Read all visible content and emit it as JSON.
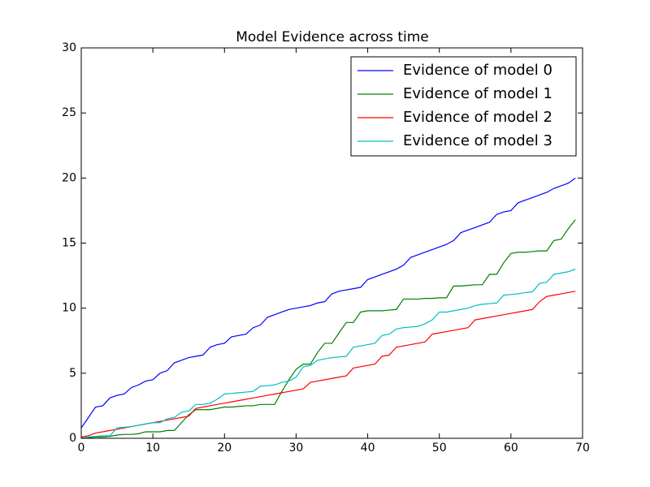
{
  "chart_data": {
    "type": "line",
    "title": "Model Evidence across time",
    "x": [
      0,
      1,
      2,
      3,
      4,
      5,
      6,
      7,
      8,
      9,
      10,
      11,
      12,
      13,
      14,
      15,
      16,
      17,
      18,
      19,
      20,
      21,
      22,
      23,
      24,
      25,
      26,
      27,
      28,
      29,
      30,
      31,
      32,
      33,
      34,
      35,
      36,
      37,
      38,
      39,
      40,
      41,
      42,
      43,
      44,
      45,
      46,
      47,
      48,
      49,
      50,
      51,
      52,
      53,
      54,
      55,
      56,
      57,
      58,
      59,
      60,
      61,
      62,
      63,
      64,
      65,
      66,
      67,
      68,
      69
    ],
    "series": [
      {
        "name": "Evidence of model 0",
        "color": "#0000ff",
        "values": [
          0.8,
          1.6,
          2.4,
          2.5,
          3.1,
          3.3,
          3.4,
          3.9,
          4.1,
          4.4,
          4.5,
          5.0,
          5.2,
          5.8,
          6.0,
          6.2,
          6.3,
          6.4,
          7.0,
          7.2,
          7.3,
          7.8,
          7.9,
          8.0,
          8.5,
          8.7,
          9.3,
          9.5,
          9.7,
          9.9,
          10.0,
          10.1,
          10.2,
          10.4,
          10.5,
          11.1,
          11.3,
          11.4,
          11.5,
          11.6,
          12.2,
          12.4,
          12.6,
          12.8,
          13.0,
          13.3,
          13.9,
          14.1,
          14.3,
          14.5,
          14.7,
          14.9,
          15.2,
          15.8,
          16.0,
          16.2,
          16.4,
          16.6,
          17.2,
          17.4,
          17.5,
          18.1,
          18.3,
          18.5,
          18.7,
          18.9,
          19.2,
          19.4,
          19.6,
          20.0
        ]
      },
      {
        "name": "Evidence of model 1",
        "color": "#008000",
        "values": [
          0.0,
          0.05,
          0.1,
          0.1,
          0.15,
          0.25,
          0.3,
          0.3,
          0.35,
          0.5,
          0.5,
          0.5,
          0.6,
          0.6,
          1.2,
          1.8,
          2.2,
          2.2,
          2.2,
          2.3,
          2.4,
          2.4,
          2.45,
          2.5,
          2.5,
          2.6,
          2.6,
          2.6,
          3.6,
          4.5,
          5.3,
          5.7,
          5.7,
          6.6,
          7.3,
          7.3,
          8.1,
          8.9,
          8.9,
          9.7,
          9.8,
          9.8,
          9.8,
          9.85,
          9.9,
          10.7,
          10.7,
          10.7,
          10.75,
          10.75,
          10.8,
          10.8,
          11.7,
          11.7,
          11.75,
          11.8,
          11.8,
          12.6,
          12.6,
          13.5,
          14.2,
          14.3,
          14.3,
          14.35,
          14.4,
          14.4,
          15.2,
          15.3,
          16.1,
          16.8
        ]
      },
      {
        "name": "Evidence of model 2",
        "color": "#ff0000",
        "values": [
          0.1,
          0.2,
          0.4,
          0.5,
          0.6,
          0.7,
          0.8,
          0.9,
          1.0,
          1.1,
          1.2,
          1.3,
          1.4,
          1.5,
          1.6,
          1.7,
          2.3,
          2.4,
          2.5,
          2.6,
          2.7,
          2.8,
          2.9,
          3.0,
          3.1,
          3.2,
          3.3,
          3.4,
          3.5,
          3.6,
          3.7,
          3.8,
          4.3,
          4.4,
          4.5,
          4.6,
          4.7,
          4.8,
          5.4,
          5.5,
          5.6,
          5.7,
          6.3,
          6.4,
          7.0,
          7.1,
          7.2,
          7.3,
          7.4,
          8.0,
          8.1,
          8.2,
          8.3,
          8.4,
          8.5,
          9.1,
          9.2,
          9.3,
          9.4,
          9.5,
          9.6,
          9.7,
          9.8,
          9.9,
          10.5,
          10.9,
          11.0,
          11.1,
          11.2,
          11.3
        ]
      },
      {
        "name": "Evidence of model 3",
        "color": "#00bfbf",
        "values": [
          0.0,
          0.1,
          0.15,
          0.2,
          0.2,
          0.8,
          0.85,
          0.9,
          1.0,
          1.1,
          1.2,
          1.2,
          1.5,
          1.6,
          2.0,
          2.1,
          2.6,
          2.6,
          2.7,
          3.0,
          3.4,
          3.45,
          3.5,
          3.55,
          3.6,
          4.0,
          4.05,
          4.1,
          4.3,
          4.4,
          4.7,
          5.5,
          5.6,
          6.0,
          6.1,
          6.2,
          6.25,
          6.3,
          7.0,
          7.1,
          7.2,
          7.3,
          7.9,
          8.0,
          8.4,
          8.5,
          8.55,
          8.6,
          8.8,
          9.1,
          9.7,
          9.7,
          9.8,
          9.9,
          10.0,
          10.2,
          10.3,
          10.35,
          10.4,
          11.0,
          11.05,
          11.1,
          11.2,
          11.25,
          11.9,
          12.0,
          12.6,
          12.7,
          12.8,
          13.0
        ]
      }
    ],
    "xlim": [
      0,
      70
    ],
    "xticks": [
      0,
      10,
      20,
      30,
      40,
      50,
      60,
      70
    ],
    "ylim": [
      0,
      30
    ],
    "yticks": [
      0,
      5,
      10,
      15,
      20,
      25,
      30
    ],
    "grid": false,
    "legend": "upper right"
  }
}
